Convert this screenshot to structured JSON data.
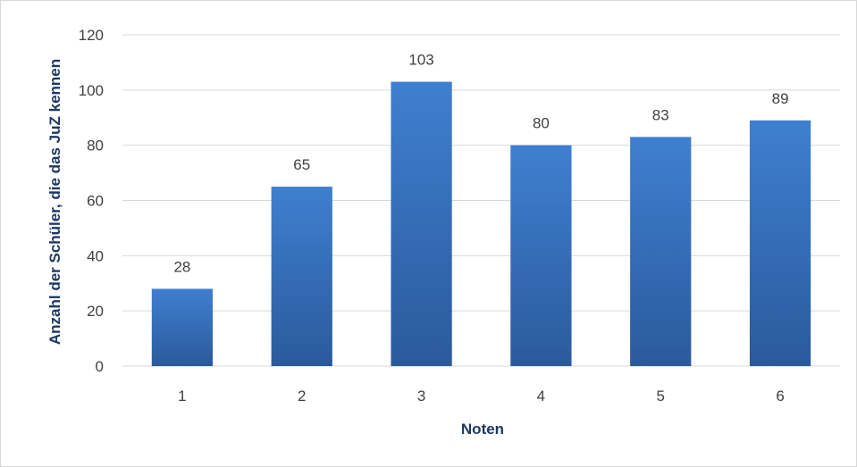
{
  "chart_data": {
    "type": "bar",
    "categories": [
      "1",
      "2",
      "3",
      "4",
      "5",
      "6"
    ],
    "values": [
      28,
      65,
      103,
      80,
      83,
      89
    ],
    "title": "",
    "xlabel": "Noten",
    "ylabel": "Anzahl der Schüler, die das JuZ kennen",
    "ylim": [
      0,
      120
    ],
    "yticks": [
      0,
      20,
      40,
      60,
      80,
      100,
      120
    ],
    "grid": true,
    "legend": "none",
    "colors": {
      "bar_top": "#3f7fd0",
      "bar_bottom": "#2a5a9c",
      "grid": "#d9d9d9",
      "title": "#1f3864"
    }
  }
}
